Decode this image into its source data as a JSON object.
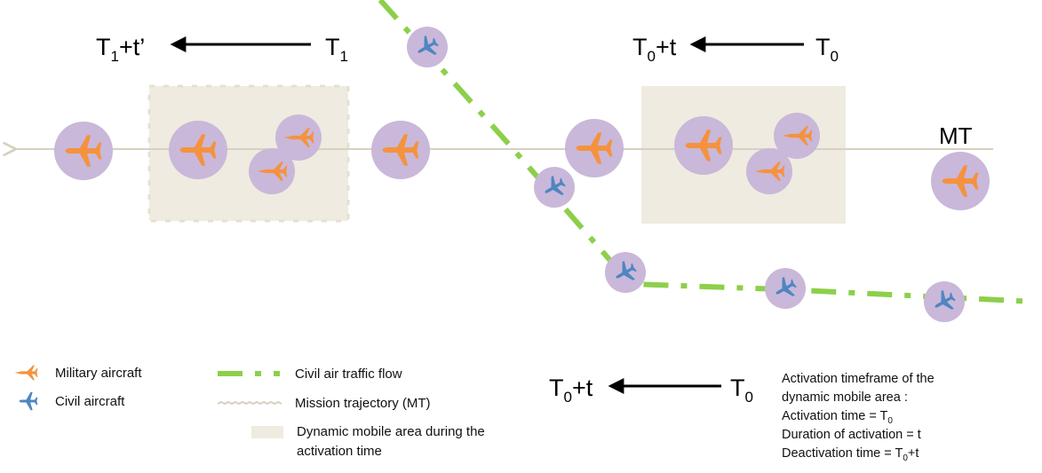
{
  "colors": {
    "military": "#f5923e",
    "civil": "#4f86c1",
    "halo": "#c9b8d9",
    "flow": "#8dcf4a",
    "area": "#efebe0",
    "trajectory": "#d8d0bf"
  },
  "diagram": {
    "mt_label": "MT",
    "top_left": {
      "start": "T",
      "start_sub": "1",
      "end_pre": "T",
      "end_sub": "1",
      "end_post": "+t’"
    },
    "top_right": {
      "start": "T",
      "start_sub": "0",
      "end_pre": "T",
      "end_sub": "0",
      "end_post": "+t"
    },
    "bottom": {
      "start": "T",
      "start_sub": "0",
      "end_pre": "T",
      "end_sub": "0",
      "end_post": "+t"
    }
  },
  "legend": {
    "military": "Military aircraft",
    "civil": "Civil aircraft",
    "flow": "Civil air traffic flow",
    "trajectory": "Mission trajectory (MT)",
    "area_line1": "Dynamic mobile area during the",
    "area_line2": "activation time"
  },
  "info": {
    "line1": "Activation timeframe of the",
    "line2": "dynamic mobile area :",
    "line3_pre": "Activation time = T",
    "line3_sub": "0",
    "line4": "Duration of activation = t",
    "line5_pre": "Deactivation time = T",
    "line5_sub": "0",
    "line5_post": "+t"
  }
}
